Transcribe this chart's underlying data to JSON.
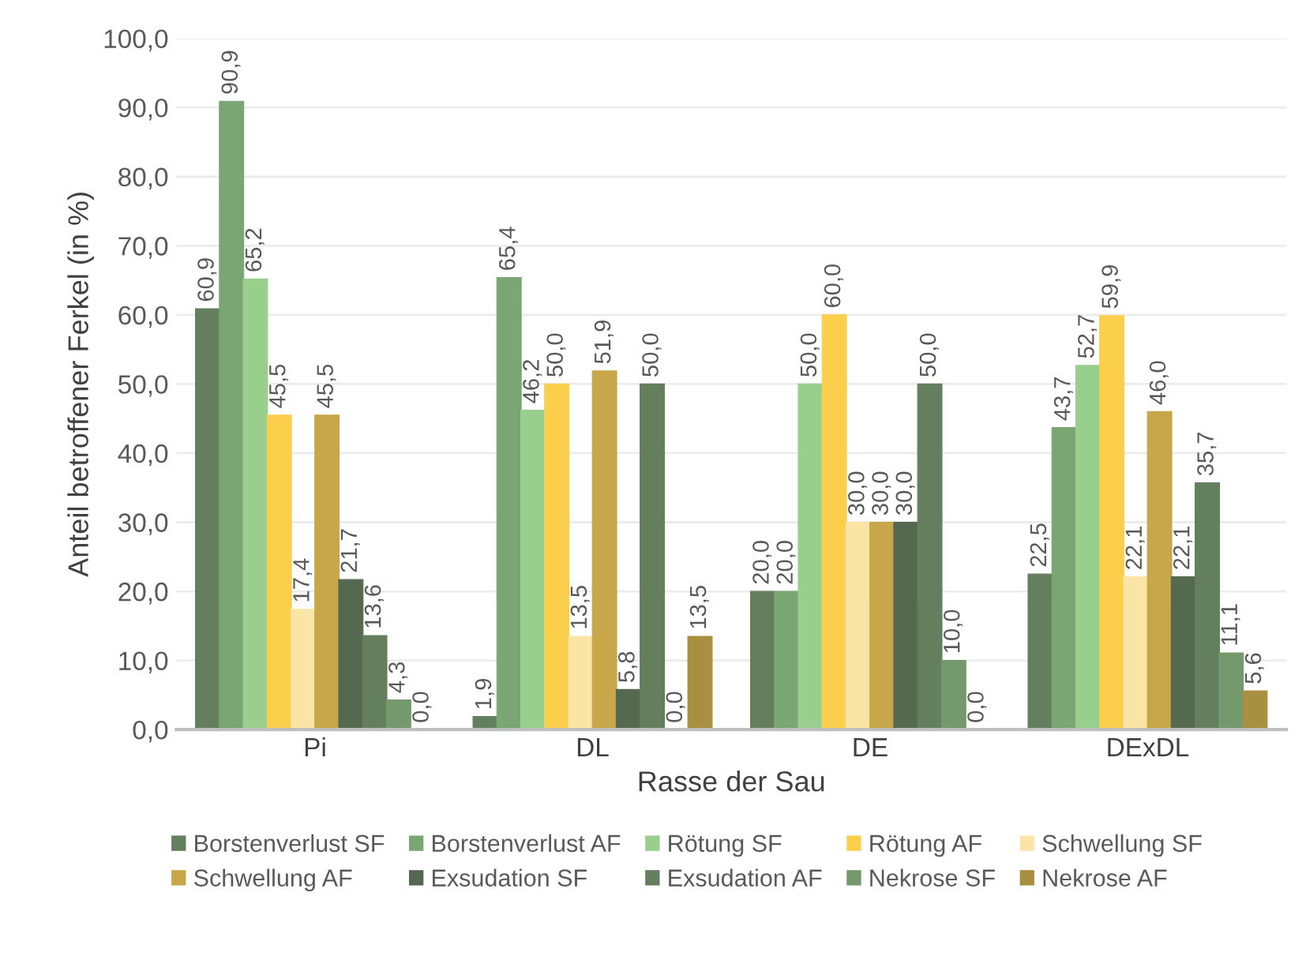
{
  "chart_data": {
    "type": "bar",
    "xlabel": "Rasse der Sau",
    "ylabel": "Anteil betroffener Ferkel (in %)",
    "categories": [
      "Pi",
      "DL",
      "DE",
      "DExDL"
    ],
    "ylim": [
      0,
      100
    ],
    "yticks": [
      {
        "value": 0,
        "label": "0,0"
      },
      {
        "value": 10,
        "label": "10,0"
      },
      {
        "value": 20,
        "label": "20,0"
      },
      {
        "value": 30,
        "label": "30,0"
      },
      {
        "value": 40,
        "label": "40,0"
      },
      {
        "value": 50,
        "label": "50,0"
      },
      {
        "value": 60,
        "label": "60,0"
      },
      {
        "value": 70,
        "label": "70,0"
      },
      {
        "value": 80,
        "label": "80,0"
      },
      {
        "value": 90,
        "label": "90,0"
      },
      {
        "value": 100,
        "label": "100,0"
      }
    ],
    "grid": "y",
    "legend": "bottom",
    "series": [
      {
        "name": "Borstenverlust SF",
        "color": "#647f5e",
        "values": [
          60.9,
          1.9,
          20.0,
          22.5
        ],
        "value_labels": [
          "60,9",
          "1,9",
          "20,0",
          "22,5"
        ]
      },
      {
        "name": "Borstenverlust AF",
        "color": "#79a673",
        "values": [
          90.9,
          65.4,
          20.0,
          43.7
        ],
        "value_labels": [
          "90,9",
          "65,4",
          "20,0",
          "43,7"
        ]
      },
      {
        "name": "Rötung SF",
        "color": "#98cf8d",
        "values": [
          65.2,
          46.2,
          50.0,
          52.7
        ],
        "value_labels": [
          "65,2",
          "46,2",
          "50,0",
          "52,7"
        ]
      },
      {
        "name": "Rötung AF",
        "color": "#fbcf4b",
        "values": [
          45.5,
          50.0,
          60.0,
          59.9
        ],
        "value_labels": [
          "45,5",
          "50,0",
          "60,0",
          "59,9"
        ]
      },
      {
        "name": "Schwellung SF",
        "color": "#fbe5a6",
        "values": [
          17.4,
          13.5,
          30.0,
          22.1
        ],
        "value_labels": [
          "17,4",
          "13,5",
          "30,0",
          "22,1"
        ]
      },
      {
        "name": "Schwellung AF",
        "color": "#c8a64a",
        "values": [
          45.5,
          51.9,
          30.0,
          46.0
        ],
        "value_labels": [
          "45,5",
          "51,9",
          "30,0",
          "46,0"
        ]
      },
      {
        "name": "Exsudation SF",
        "color": "#556850",
        "values": [
          21.7,
          5.8,
          30.0,
          22.1
        ],
        "value_labels": [
          "21,7",
          "5,8",
          "30,0",
          "22,1"
        ]
      },
      {
        "name": "Exsudation AF",
        "color": "#637f5d",
        "values": [
          13.6,
          50.0,
          50.0,
          35.7
        ],
        "value_labels": [
          "13,6",
          "50,0",
          "50,0",
          "35,7"
        ]
      },
      {
        "name": "Nekrose SF",
        "color": "#73996c",
        "values": [
          4.3,
          0.0,
          10.0,
          11.1
        ],
        "value_labels": [
          "4,3",
          "0,0",
          "10,0",
          "11,1"
        ]
      },
      {
        "name": "Nekrose AF",
        "color": "#a89040",
        "values": [
          0.0,
          13.5,
          0.0,
          5.6
        ],
        "value_labels": [
          "0,0",
          "13,5",
          "0,0",
          "5,6"
        ]
      }
    ]
  }
}
